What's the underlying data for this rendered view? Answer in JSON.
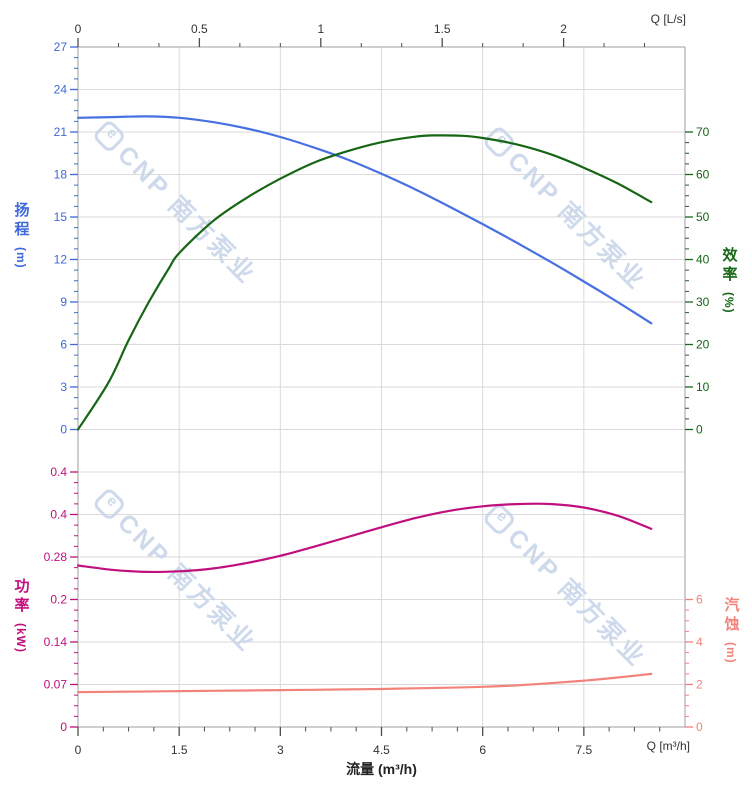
{
  "watermark": {
    "logo_text": "e",
    "text": "CNP 南方泵业",
    "color": "#c9d6e9"
  },
  "chart_data": {
    "type": "line",
    "title": "",
    "grid": true,
    "axes": {
      "top_x": {
        "end_label": "Q [L/s]",
        "tick_labels": [
          "0",
          "0.5",
          "1",
          "1.5",
          "2"
        ],
        "tick_values": [
          0,
          0.5,
          1,
          1.5,
          2
        ],
        "range": [
          0,
          2.5
        ],
        "color": "#333333"
      },
      "bottom_x": {
        "label": "流量 (m³/h)",
        "end_label": "Q [m³/h]",
        "tick_labels": [
          "0",
          "1.5",
          "3",
          "4.5",
          "6",
          "7.5"
        ],
        "tick_values": [
          0,
          1.5,
          3,
          4.5,
          6,
          7.5
        ],
        "range": [
          0,
          9
        ],
        "color": "#333333"
      },
      "head_y": {
        "title": "扬程",
        "unit": "(m)",
        "tick_labels": [
          "0",
          "3",
          "6",
          "9",
          "12",
          "15",
          "18",
          "21",
          "24",
          "27"
        ],
        "tick_values": [
          0,
          3,
          6,
          9,
          12,
          15,
          18,
          21,
          24,
          27
        ],
        "range": [
          0,
          27
        ],
        "color": "#3e68db"
      },
      "efficiency_y": {
        "title": "效率",
        "unit": "(%)",
        "tick_labels": [
          "0",
          "10",
          "20",
          "30",
          "40",
          "50",
          "60",
          "70"
        ],
        "tick_values": [
          0,
          10,
          20,
          30,
          40,
          50,
          60,
          70
        ],
        "range": [
          0,
          70
        ],
        "color": "#166616"
      },
      "power_y": {
        "title": "功率",
        "unit": "(kW)",
        "tick_labels": [
          "0",
          "0.07",
          "0.14",
          "0.2",
          "0.28",
          "0.4",
          "0.4"
        ],
        "tick_values": [
          0,
          0.07,
          0.14,
          0.21,
          0.28,
          0.35,
          0.42
        ],
        "range": [
          0,
          0.49
        ],
        "color": "#c0107e"
      },
      "npsh_y": {
        "title": "汽蚀",
        "unit": "(m)",
        "tick_labels": [
          "0",
          "2",
          "4",
          "6"
        ],
        "tick_values": [
          0,
          2,
          4,
          6
        ],
        "range": [
          0,
          6
        ],
        "color": "#f2837b"
      }
    },
    "series": [
      {
        "name": "head",
        "axis": "head",
        "color": "#4770e0",
        "points": [
          [
            0,
            22.0
          ],
          [
            0.5,
            22.05
          ],
          [
            1,
            22.1
          ],
          [
            1.5,
            22.0
          ],
          [
            2,
            21.7
          ],
          [
            2.5,
            21.25
          ],
          [
            3,
            20.65
          ],
          [
            3.5,
            19.9
          ],
          [
            4,
            19.05
          ],
          [
            4.5,
            18.05
          ],
          [
            5,
            16.95
          ],
          [
            5.5,
            15.75
          ],
          [
            6,
            14.5
          ],
          [
            6.5,
            13.2
          ],
          [
            7,
            11.85
          ],
          [
            7.5,
            10.45
          ],
          [
            8,
            9.0
          ],
          [
            8.5,
            7.5
          ]
        ]
      },
      {
        "name": "efficiency",
        "axis": "efficiency",
        "color": "#166616",
        "points": [
          [
            0,
            0
          ],
          [
            0.45,
            11
          ],
          [
            0.75,
            21
          ],
          [
            1.05,
            30
          ],
          [
            1.35,
            38
          ],
          [
            1.5,
            41.5
          ],
          [
            2,
            49
          ],
          [
            2.5,
            54.5
          ],
          [
            3,
            59
          ],
          [
            3.5,
            62.8
          ],
          [
            4,
            65.5
          ],
          [
            4.5,
            67.6
          ],
          [
            5,
            68.9
          ],
          [
            5.3,
            69.2
          ],
          [
            5.7,
            69.1
          ],
          [
            6,
            68.6
          ],
          [
            6.5,
            67.1
          ],
          [
            7,
            64.8
          ],
          [
            7.5,
            61.6
          ],
          [
            8,
            57.9
          ],
          [
            8.5,
            53.5
          ]
        ]
      },
      {
        "name": "power",
        "axis": "power",
        "color": "#c0107e",
        "points": [
          [
            0,
            0.266
          ],
          [
            0.5,
            0.259
          ],
          [
            1,
            0.2555
          ],
          [
            1.5,
            0.2565
          ],
          [
            2,
            0.261
          ],
          [
            2.5,
            0.27
          ],
          [
            3,
            0.282
          ],
          [
            3.5,
            0.297
          ],
          [
            4,
            0.313
          ],
          [
            4.5,
            0.329
          ],
          [
            5,
            0.344
          ],
          [
            5.5,
            0.356
          ],
          [
            6,
            0.3635
          ],
          [
            6.5,
            0.3672
          ],
          [
            7,
            0.3673
          ],
          [
            7.5,
            0.3615
          ],
          [
            8,
            0.348
          ],
          [
            8.5,
            0.3265
          ]
        ]
      },
      {
        "name": "npsh",
        "axis": "npsh",
        "color": "#f2837b",
        "points": [
          [
            0,
            1.64
          ],
          [
            0.5,
            1.655
          ],
          [
            1,
            1.67
          ],
          [
            1.5,
            1.69
          ],
          [
            2,
            1.705
          ],
          [
            2.5,
            1.72
          ],
          [
            3,
            1.735
          ],
          [
            3.5,
            1.75
          ],
          [
            4,
            1.77
          ],
          [
            4.5,
            1.79
          ],
          [
            5,
            1.82
          ],
          [
            5.5,
            1.85
          ],
          [
            6,
            1.89
          ],
          [
            6.5,
            1.96
          ],
          [
            7,
            2.06
          ],
          [
            7.5,
            2.18
          ],
          [
            8,
            2.33
          ],
          [
            8.5,
            2.5
          ]
        ]
      }
    ]
  }
}
